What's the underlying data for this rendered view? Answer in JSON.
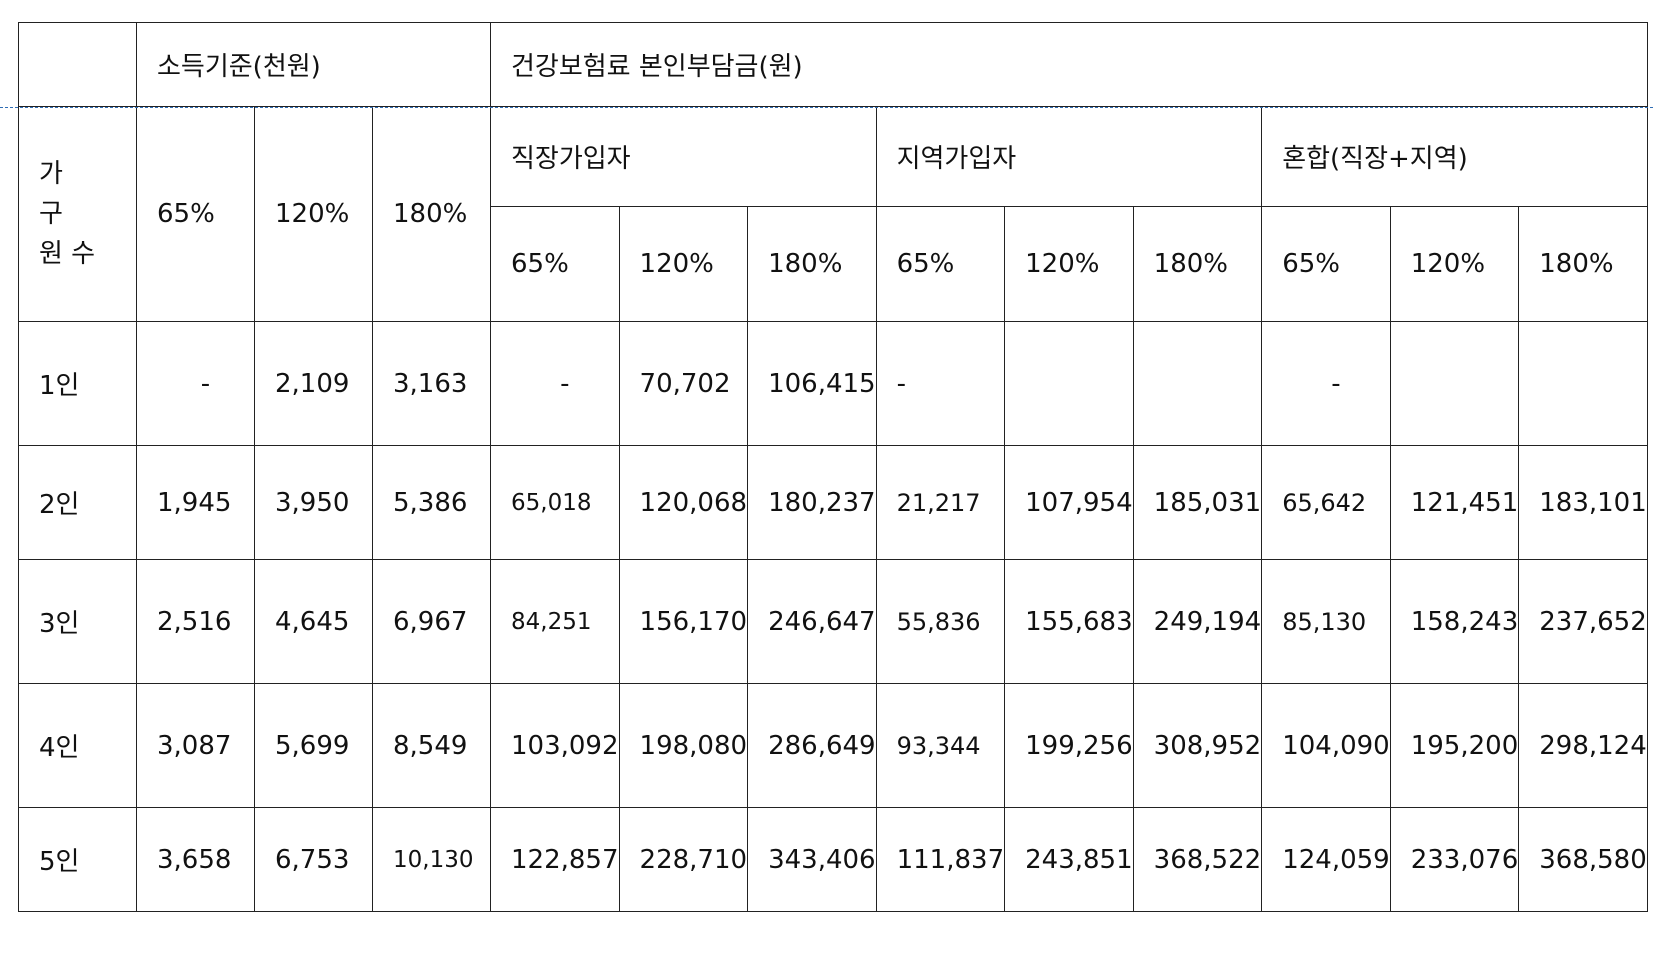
{
  "header": {
    "income_group": "소득기준(천원)",
    "insurance_group": "건강보험료 본인부담금(원)",
    "household_size_lines": [
      "가",
      "구",
      "원 수"
    ],
    "income_levels": [
      "65%",
      "120%",
      "180%"
    ],
    "subscriber_types": [
      "직장가입자",
      "지역가입자",
      "혼합(직장+지역)"
    ],
    "sub_levels": [
      "65%",
      "120%",
      "180%"
    ]
  },
  "rows": [
    {
      "label": "1인",
      "income": [
        "-",
        "2,109",
        "3,163"
      ],
      "employee": [
        "-",
        "70,702",
        "106,415"
      ],
      "regional": [
        "-",
        "",
        ""
      ],
      "mixed": [
        "-",
        "",
        ""
      ]
    },
    {
      "label": "2인",
      "income": [
        "1,945",
        "3,950",
        "5,386"
      ],
      "employee": [
        "65,018",
        "120,068",
        "180,237"
      ],
      "regional": [
        "21,217",
        "107,954",
        "185,031"
      ],
      "mixed": [
        "65,642",
        "121,451",
        "183,101"
      ]
    },
    {
      "label": "3인",
      "income": [
        "2,516",
        "4,645",
        "6,967"
      ],
      "employee": [
        "84,251",
        "156,170",
        "246,647"
      ],
      "regional": [
        "55,836",
        "155,683",
        "249,194"
      ],
      "mixed": [
        "85,130",
        "158,243",
        "237,652"
      ]
    },
    {
      "label": "4인",
      "income": [
        "3,087",
        "5,699",
        "8,549"
      ],
      "employee": [
        "103,092",
        "198,080",
        "286,649"
      ],
      "regional": [
        "93,344",
        "199,256",
        "308,952"
      ],
      "mixed": [
        "104,090",
        "195,200",
        "298,124"
      ]
    },
    {
      "label": "5인",
      "income": [
        "3,658",
        "6,753",
        "10,130"
      ],
      "employee": [
        "122,857",
        "228,710",
        "343,406"
      ],
      "regional": [
        "111,837",
        "243,851",
        "368,522"
      ],
      "mixed": [
        "124,059",
        "233,076",
        "368,580"
      ]
    }
  ],
  "colors": {
    "border": "#222222",
    "guide_line": "#2f6db5",
    "text": "#111111"
  }
}
